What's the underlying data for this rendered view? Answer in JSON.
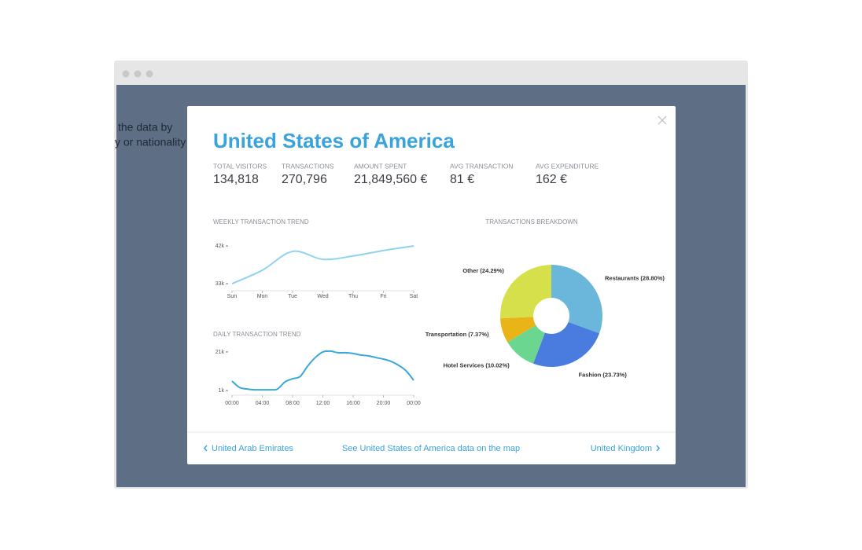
{
  "background_text": [
    "the data by",
    "y or nationality"
  ],
  "title": "United States of America",
  "stats": [
    {
      "label": "TOTAL VISITORS",
      "value": "134,818"
    },
    {
      "label": "TRANSACTIONS",
      "value": "270,796"
    },
    {
      "label": "AMOUNT SPENT",
      "value": "21,849,560 €"
    },
    {
      "label": "AVG TRANSACTION",
      "value": "81 €"
    },
    {
      "label": "AVG EXPENDITURE",
      "value": "162 €"
    }
  ],
  "chart_data": [
    {
      "type": "line",
      "title": "WEEKLY TRANSACTION TREND",
      "categories": [
        "Sun",
        "Mon",
        "Tue",
        "Wed",
        "Thu",
        "Fri",
        "Sat"
      ],
      "values": [
        33000,
        36200,
        40700,
        38800,
        39600,
        40900,
        42000
      ],
      "color": "#8fd3f0",
      "ylim": [
        31500,
        43500
      ],
      "yticks": [
        {
          "value": 33000,
          "label": "33k"
        },
        {
          "value": 42000,
          "label": "42k"
        }
      ]
    },
    {
      "type": "line",
      "title": "DAILY TRANSACTION TREND",
      "x": [
        0,
        1,
        2,
        3,
        4,
        5,
        6,
        7,
        8,
        9,
        10,
        11,
        12,
        13,
        14,
        15,
        16,
        17,
        18,
        19,
        20,
        21,
        22,
        23,
        24
      ],
      "values": [
        5900,
        2600,
        1800,
        1400,
        1400,
        1400,
        1800,
        5500,
        7100,
        8300,
        13700,
        18100,
        21000,
        21400,
        20600,
        20600,
        20200,
        19400,
        19000,
        18100,
        17300,
        16100,
        14100,
        11200,
        6300
      ],
      "color": "#3aa7dc",
      "xlim": [
        0,
        24
      ],
      "xticks": [
        {
          "value": 0,
          "label": "00:00"
        },
        {
          "value": 4,
          "label": "04:00"
        },
        {
          "value": 8,
          "label": "08:00"
        },
        {
          "value": 12,
          "label": "12:00"
        },
        {
          "value": 16,
          "label": "16:00"
        },
        {
          "value": 20,
          "label": "20:00"
        },
        {
          "value": 24,
          "label": "00:00"
        }
      ],
      "ylim": [
        -1000,
        23000
      ],
      "yticks": [
        {
          "value": 1000,
          "label": "1k"
        },
        {
          "value": 21000,
          "label": "21k"
        }
      ]
    },
    {
      "type": "pie",
      "title": "TRANSACTIONS BREAKDOWN",
      "categories": [
        "Restaurants",
        "Fashion",
        "Hotel Services",
        "Transportation",
        "Other"
      ],
      "values": [
        28.8,
        23.73,
        10.02,
        7.37,
        24.29
      ],
      "value_labels": [
        "Restaurants (28.80%)",
        "Fashion (23.73%)",
        "Hotel Services (10.02%)",
        "Transportation (7.37%)",
        "Other (24.29%)"
      ],
      "colors": [
        "#6ab7db",
        "#4a7ce0",
        "#6ad68f",
        "#e8b418",
        "#d5e04b"
      ],
      "donut": true
    }
  ],
  "footer": {
    "prev": "United Arab Emirates",
    "center": "See United States of America data on the map",
    "next": "United Kingdom"
  }
}
